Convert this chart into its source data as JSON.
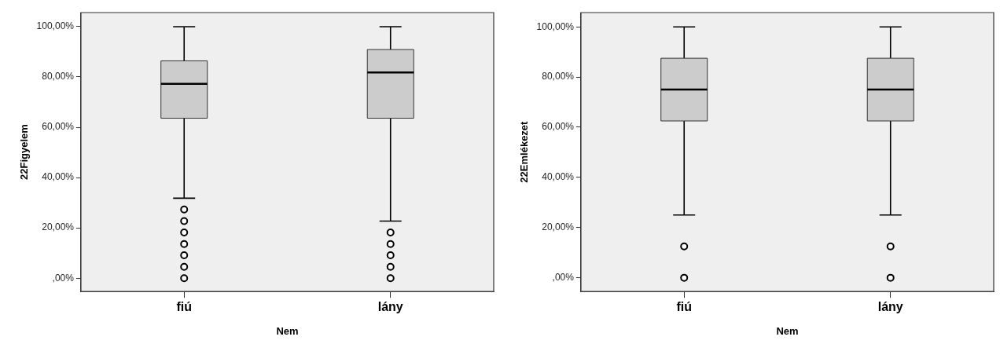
{
  "chart_data": [
    {
      "type": "box",
      "categories": [
        "fiú",
        "lány"
      ],
      "xlabel": "Nem",
      "ylabel": "22Figyelem",
      "ylim": [
        -5.3,
        105.6
      ],
      "yticks": [
        {
          "value": 0,
          "label": ",00%"
        },
        {
          "value": 20,
          "label": "20,00%"
        },
        {
          "value": 40,
          "label": "40,00%"
        },
        {
          "value": 60,
          "label": "60,00%"
        },
        {
          "value": 80,
          "label": "80,00%"
        },
        {
          "value": 100,
          "label": "100,00%"
        }
      ],
      "marker": "circle",
      "series": [
        {
          "color": "#cccccc",
          "boxes": [
            {
              "low": 31.8,
              "q1": 63.6,
              "median": 77.3,
              "q3": 86.4,
              "high": 100,
              "outliers": [
                27.3,
                22.7,
                18.2,
                13.6,
                9.1,
                4.5,
                0
              ]
            },
            {
              "low": 22.7,
              "q1": 63.6,
              "median": 81.8,
              "q3": 90.9,
              "high": 100,
              "outliers": [
                18.2,
                13.6,
                9.1,
                4.5,
                0
              ]
            }
          ]
        }
      ]
    },
    {
      "type": "box",
      "categories": [
        "fiú",
        "lány"
      ],
      "xlabel": "Nem",
      "ylabel": "22Emlékezet",
      "ylim": [
        -5.5,
        105.7
      ],
      "yticks": [
        {
          "value": 0,
          "label": ",00%"
        },
        {
          "value": 20,
          "label": "20,00%"
        },
        {
          "value": 40,
          "label": "40,00%"
        },
        {
          "value": 60,
          "label": "60,00%"
        },
        {
          "value": 80,
          "label": "80,00%"
        },
        {
          "value": 100,
          "label": "100,00%"
        }
      ],
      "marker": "circle",
      "series": [
        {
          "color": "#cccccc",
          "boxes": [
            {
              "low": 25,
              "q1": 62.5,
              "median": 75,
              "q3": 87.5,
              "high": 100,
              "outliers": [
                12.5,
                0
              ]
            },
            {
              "low": 25,
              "q1": 62.5,
              "median": 75,
              "q3": 87.5,
              "high": 100,
              "outliers": [
                12.5,
                0
              ]
            }
          ]
        }
      ]
    }
  ]
}
